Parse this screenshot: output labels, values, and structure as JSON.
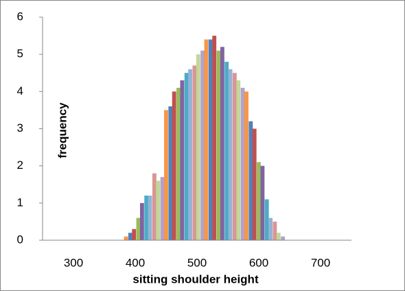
{
  "chart_data": {
    "type": "bar",
    "x_label": "sitting shoulder height",
    "y_label": "frequency",
    "x": [
      385,
      392,
      398,
      405,
      411,
      418,
      424,
      431,
      437,
      444,
      450,
      457,
      463,
      470,
      476,
      483,
      489,
      496,
      502,
      509,
      515,
      522,
      528,
      535,
      541,
      548,
      554,
      561,
      567,
      574,
      580,
      587,
      593,
      600,
      606,
      613,
      619,
      626,
      632,
      639
    ],
    "values": [
      0.1,
      0.2,
      0.3,
      0.6,
      1.0,
      1.2,
      1.2,
      1.8,
      1.6,
      1.7,
      3.5,
      3.6,
      4.0,
      4.1,
      4.3,
      4.5,
      4.6,
      4.7,
      5.0,
      5.1,
      5.4,
      5.4,
      5.5,
      5.1,
      5.2,
      4.8,
      4.6,
      4.5,
      4.3,
      4.1,
      4.0,
      3.2,
      3.0,
      2.1,
      2.0,
      1.1,
      0.6,
      0.5,
      0.2,
      0.1
    ],
    "colors": [
      "#F79646",
      "#4F81BD",
      "#C0504D",
      "#9BBB59",
      "#8064A2",
      "#4BACC6",
      "#95B3D7",
      "#D99694",
      "#C3D69B",
      "#B3A2C7"
    ],
    "xlim": [
      250,
      750
    ],
    "xticks": [
      300,
      400,
      500,
      600,
      700
    ],
    "ylim": [
      0,
      6
    ],
    "yticks": [
      0,
      1,
      2,
      3,
      4,
      5,
      6
    ],
    "grid": false
  }
}
